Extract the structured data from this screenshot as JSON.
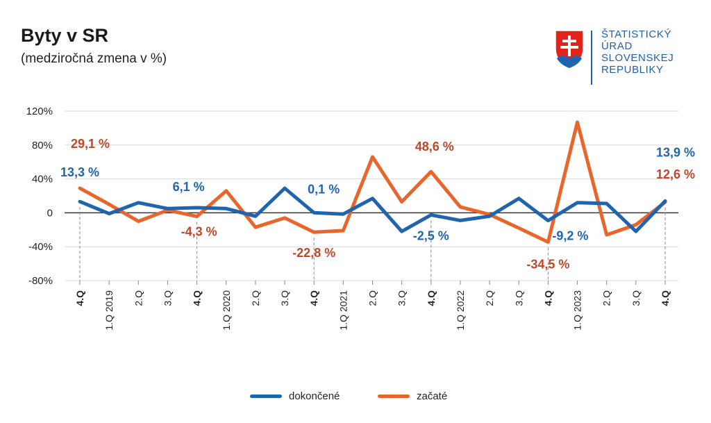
{
  "header": {
    "title": "Byty v SR",
    "subtitle": "(medziročná zmena v %)"
  },
  "logo": {
    "lines": [
      "ŠTATISTICKÝ",
      "ÚRAD",
      "SLOVENSKEJ",
      "REPUBLIKY"
    ]
  },
  "colors": {
    "completed": "#1f64ad",
    "started": "#e8652b",
    "started_label": "#c0462a",
    "grid": "#d9d9d9",
    "axis": "#333333"
  },
  "chart_data": {
    "type": "line",
    "title": "Byty v SR",
    "subtitle": "(medziročná zmena v %)",
    "grid": true,
    "legend": "bottom",
    "ylim": [
      -80,
      120
    ],
    "yticks": [
      -80,
      -40,
      0,
      40,
      80,
      120
    ],
    "ytick_labels": [
      "-80%",
      "-40%",
      "0",
      "40%",
      "80%",
      "120%"
    ],
    "categories": [
      "4.Q",
      "1.Q 2019",
      "2.Q",
      "3.Q",
      "4.Q",
      "1.Q 2020",
      "2.Q",
      "3.Q",
      "4.Q",
      "1.Q 2021",
      "2.Q",
      "3.Q",
      "4.Q",
      "1.Q 2022",
      "2.Q",
      "3.Q",
      "4.Q",
      "1.Q 2023",
      "2.Q",
      "3.Q",
      "4.Q"
    ],
    "bold_categories": [
      0,
      4,
      8,
      12,
      16,
      20
    ],
    "series": [
      {
        "name": "dokončené",
        "values": [
          13.3,
          -1,
          12,
          5,
          6.1,
          5,
          -4,
          29,
          0.1,
          -1.5,
          17,
          -22,
          -2.5,
          -9,
          -4,
          17,
          -9.2,
          12,
          11,
          -22,
          13.9
        ]
      },
      {
        "name": "začaté",
        "values": [
          29.1,
          10,
          -10,
          3,
          -4.3,
          26,
          -17,
          -6,
          -22.8,
          -21,
          66,
          13,
          48.6,
          7,
          -2,
          -18,
          -34.5,
          107,
          -26,
          -14,
          12.6
        ]
      }
    ],
    "annotations": [
      {
        "series": 0,
        "index": 0,
        "text": "13,3 %"
      },
      {
        "series": 1,
        "index": 0,
        "text": "29,1 %"
      },
      {
        "series": 0,
        "index": 4,
        "text": "6,1 %"
      },
      {
        "series": 1,
        "index": 4,
        "text": "-4,3 %"
      },
      {
        "series": 0,
        "index": 8,
        "text": "0,1 %"
      },
      {
        "series": 1,
        "index": 8,
        "text": "-22,8 %"
      },
      {
        "series": 1,
        "index": 12,
        "text": "48,6 %"
      },
      {
        "series": 0,
        "index": 12,
        "text": "-2,5 %"
      },
      {
        "series": 1,
        "index": 16,
        "text": "-34,5 %"
      },
      {
        "series": 0,
        "index": 16,
        "text": "-9,2 %"
      },
      {
        "series": 0,
        "index": 20,
        "text": "13,9 %"
      },
      {
        "series": 1,
        "index": 20,
        "text": "12,6 %"
      }
    ]
  }
}
